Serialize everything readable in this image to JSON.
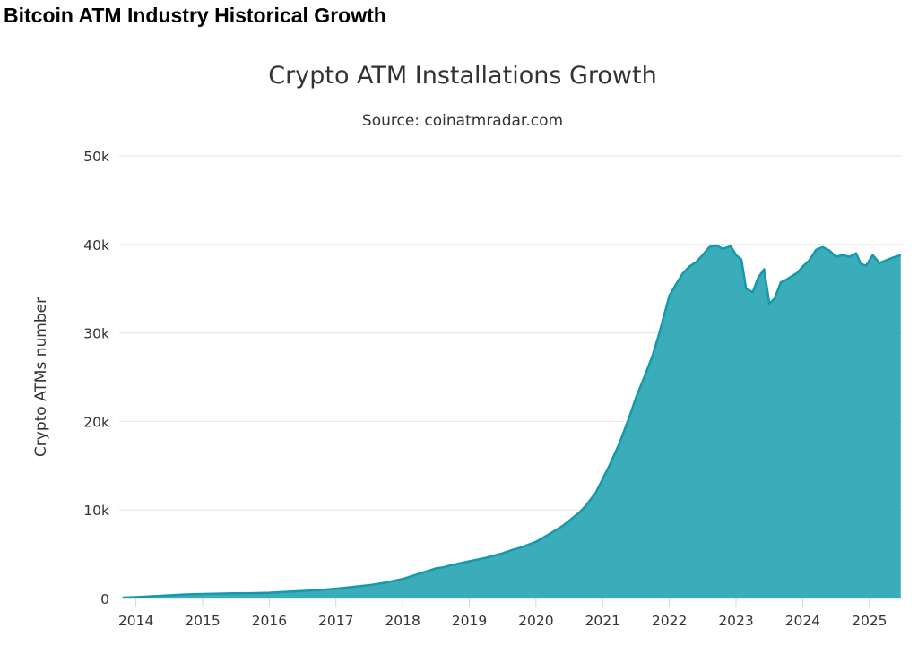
{
  "page": {
    "heading": "Bitcoin ATM Industry Historical Growth"
  },
  "colors": {
    "series_fill": "#2aa5b4",
    "series_line": "#149aa8"
  },
  "chart_data": {
    "type": "area",
    "title": "Crypto ATM Installations Growth",
    "subtitle": "Source: coinatmradar.com",
    "xlabel": "",
    "ylabel": "Crypto ATMs number",
    "ylim": [
      0,
      50000
    ],
    "xlim": [
      2013.75,
      2025.5
    ],
    "grid": true,
    "legend": "none",
    "y_ticks": [
      0,
      10000,
      20000,
      30000,
      40000,
      50000
    ],
    "y_tick_labels": [
      "0",
      "10k",
      "20k",
      "30k",
      "40k",
      "50k"
    ],
    "x_ticks": [
      2014,
      2015,
      2016,
      2017,
      2018,
      2019,
      2020,
      2021,
      2022,
      2023,
      2024,
      2025
    ],
    "x_tick_labels": [
      "2014",
      "2015",
      "2016",
      "2017",
      "2018",
      "2019",
      "2020",
      "2021",
      "2022",
      "2023",
      "2024",
      "2025"
    ],
    "series": [
      {
        "x": [
          2013.8,
          2014.0,
          2014.25,
          2014.5,
          2014.75,
          2015.0,
          2015.25,
          2015.5,
          2015.75,
          2016.0,
          2016.25,
          2016.5,
          2016.75,
          2017.0,
          2017.25,
          2017.5,
          2017.75,
          2018.0,
          2018.25,
          2018.5,
          2018.6,
          2018.75,
          2019.0,
          2019.25,
          2019.5,
          2019.65,
          2019.75,
          2020.0,
          2020.25,
          2020.4,
          2020.5,
          2020.65,
          2020.75,
          2020.9,
          2021.0,
          2021.1,
          2021.25,
          2021.4,
          2021.5,
          2021.65,
          2021.75,
          2021.85,
          2021.95,
          2022.0,
          2022.1,
          2022.2,
          2022.3,
          2022.4,
          2022.5,
          2022.6,
          2022.7,
          2022.8,
          2022.92,
          2023.0,
          2023.08,
          2023.15,
          2023.25,
          2023.33,
          2023.42,
          2023.5,
          2023.58,
          2023.67,
          2023.75,
          2023.92,
          2024.0,
          2024.1,
          2024.2,
          2024.3,
          2024.4,
          2024.5,
          2024.6,
          2024.7,
          2024.8,
          2024.87,
          2024.95,
          2025.05,
          2025.15,
          2025.25,
          2025.35,
          2025.47
        ],
        "y": [
          100,
          150,
          250,
          350,
          450,
          500,
          550,
          580,
          600,
          650,
          750,
          850,
          950,
          1100,
          1300,
          1500,
          1800,
          2200,
          2800,
          3400,
          3500,
          3800,
          4200,
          4600,
          5100,
          5500,
          5700,
          6400,
          7500,
          8200,
          8800,
          9700,
          10500,
          12000,
          13500,
          15000,
          17500,
          20500,
          22700,
          25500,
          27500,
          30000,
          32800,
          34200,
          35500,
          36700,
          37500,
          38000,
          38800,
          39700,
          39900,
          39500,
          39800,
          38800,
          38300,
          35000,
          34600,
          36200,
          37200,
          33300,
          33900,
          35700,
          36000,
          36800,
          37500,
          38200,
          39400,
          39700,
          39300,
          38600,
          38800,
          38600,
          39000,
          37800,
          37600,
          38800,
          37900,
          38200,
          38500,
          38800
        ]
      }
    ]
  }
}
